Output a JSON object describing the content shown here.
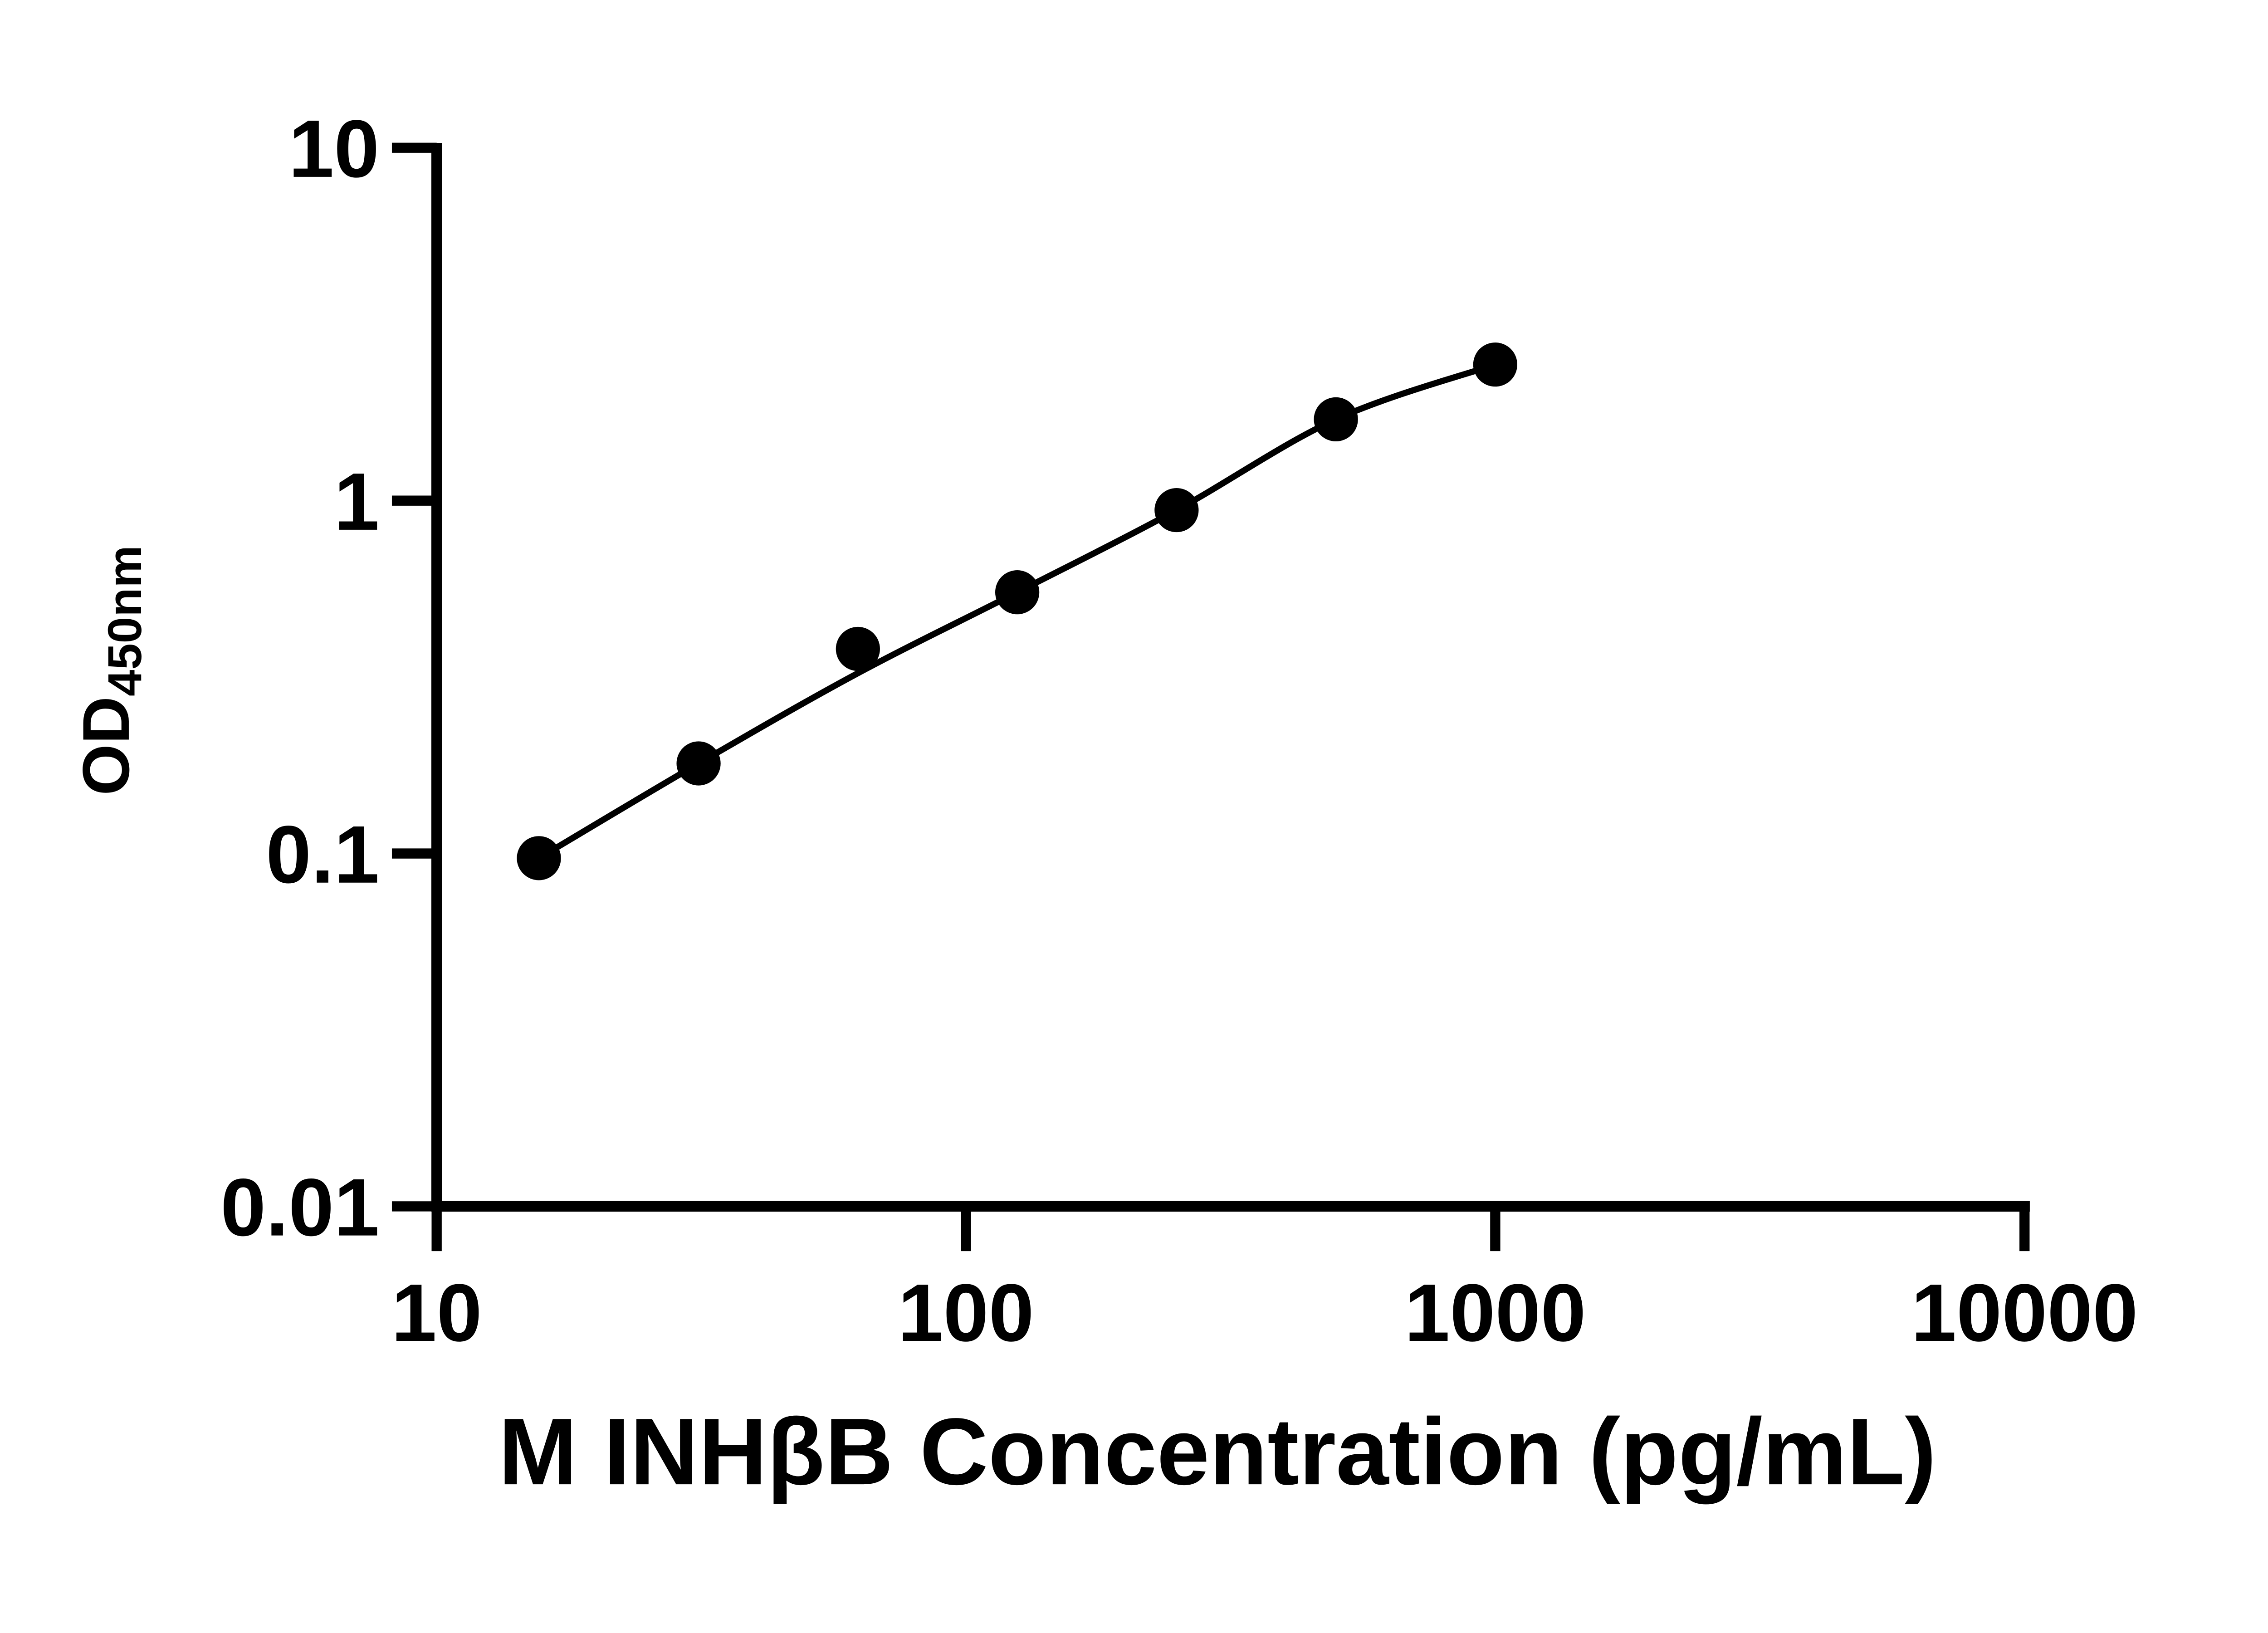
{
  "figure": {
    "background_color": "#ffffff",
    "ink_color": "#000000"
  },
  "chart_data": {
    "type": "scatter",
    "title": "",
    "xlabel": "M INHβB Concentration (pg/mL)",
    "ylabel": {
      "base": "OD",
      "subscript": "450nm"
    },
    "xscale": "log",
    "yscale": "log",
    "xlim": [
      10,
      10000
    ],
    "ylim": [
      0.01,
      10
    ],
    "x_ticks": {
      "values": [
        10,
        100,
        1000,
        10000
      ],
      "labels": [
        "10",
        "100",
        "1000",
        "10000"
      ]
    },
    "y_ticks": {
      "values": [
        0.01,
        0.1,
        1,
        10
      ],
      "labels": [
        "0.01",
        "0.1",
        "1",
        "10"
      ]
    },
    "grid": false,
    "legend": null,
    "series": [
      {
        "name": "standard-curve",
        "marker": "filled-circle",
        "color": "#000000",
        "line_color": "#000000",
        "points": [
          {
            "x": 15.6,
            "y": 0.097
          },
          {
            "x": 31.25,
            "y": 0.18
          },
          {
            "x": 62.5,
            "y": 0.38
          },
          {
            "x": 125,
            "y": 0.55
          },
          {
            "x": 250,
            "y": 0.94
          },
          {
            "x": 500,
            "y": 1.7
          },
          {
            "x": 1000,
            "y": 2.43
          }
        ]
      }
    ]
  }
}
